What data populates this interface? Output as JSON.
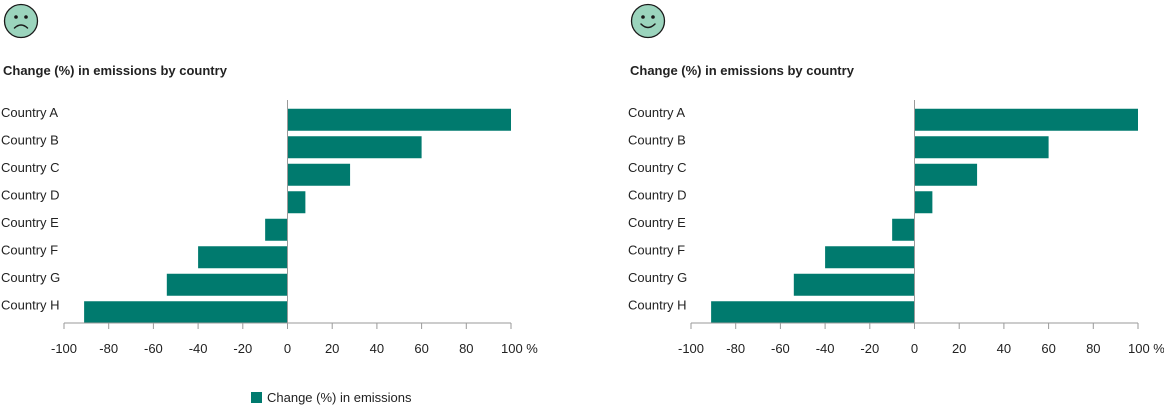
{
  "colors": {
    "bar": "#007a6e",
    "face_fill": "#9bd4bd",
    "face_stroke": "#1a1a1a",
    "axis": "#9a9a9a",
    "text": "#222222"
  },
  "legend": {
    "label": "Change (%) in emissions"
  },
  "panels": [
    {
      "face_icon": "sad-face-icon",
      "title": "Change (%) in emissions by country"
    },
    {
      "face_icon": "happy-face-icon",
      "title": "Change (%) in emissions by country"
    }
  ],
  "chart_data": [
    {
      "type": "bar",
      "orientation": "horizontal",
      "title": "Change (%) in emissions by country",
      "categories": [
        "Country A",
        "Country B",
        "Country C",
        "Country D",
        "Country E",
        "Country F",
        "Country G",
        "Country H"
      ],
      "series": [
        {
          "name": "Change (%) in emissions",
          "values": [
            100,
            60,
            28,
            8,
            -10,
            -40,
            -54,
            -91
          ]
        }
      ],
      "xlim": [
        -100,
        100
      ],
      "xticks": [
        -100,
        -80,
        -60,
        -40,
        -20,
        0,
        20,
        40,
        60,
        80,
        100
      ],
      "xtick_labels": [
        "-100",
        "-80",
        "-60",
        "-40",
        "-20",
        "0",
        "20",
        "40",
        "60",
        "80",
        "100 %"
      ],
      "grid": false,
      "legend_position": "bottom"
    },
    {
      "type": "bar",
      "orientation": "horizontal",
      "title": "Change (%) in emissions by country",
      "categories": [
        "Country A",
        "Country B",
        "Country C",
        "Country D",
        "Country E",
        "Country F",
        "Country G",
        "Country H"
      ],
      "series": [
        {
          "name": "Change (%) in emissions",
          "values": [
            100,
            60,
            28,
            8,
            -10,
            -40,
            -54,
            -91
          ]
        }
      ],
      "xlim": [
        -100,
        100
      ],
      "xticks": [
        -100,
        -80,
        -60,
        -40,
        -20,
        0,
        20,
        40,
        60,
        80,
        100
      ],
      "xtick_labels": [
        "-100",
        "-80",
        "-60",
        "-40",
        "-20",
        "0",
        "20",
        "40",
        "60",
        "80",
        "100 %"
      ],
      "grid": false,
      "legend_position": "bottom"
    }
  ]
}
